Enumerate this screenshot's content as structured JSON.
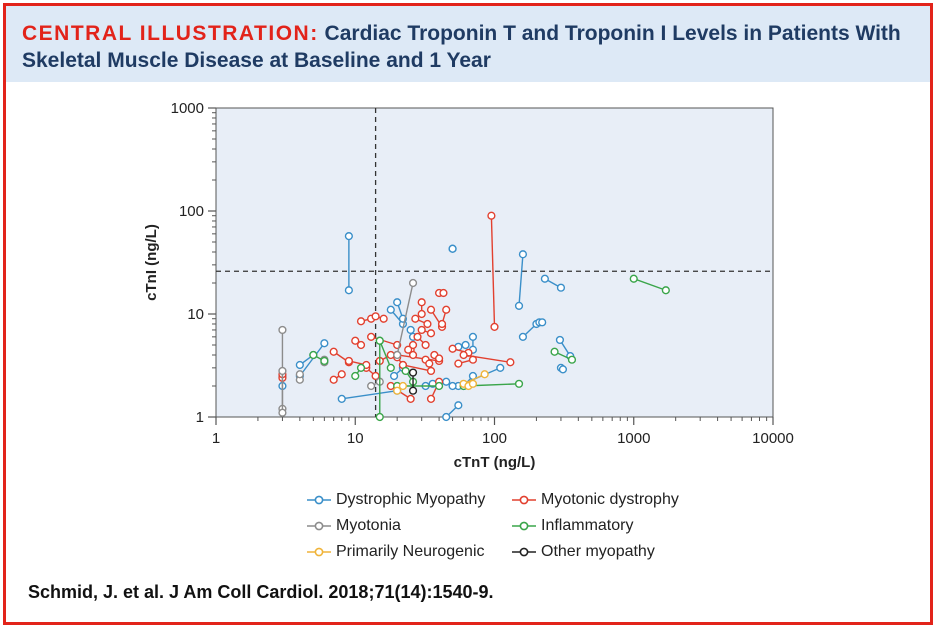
{
  "header": {
    "lead": "CENTRAL ILLUSTRATION:",
    "title": "Cardiac Troponin T and Troponin I Levels in Patients With Skeletal Muscle Disease at Baseline and 1 Year"
  },
  "citation": "Schmid, J. et al. J Am Coll Cardiol. 2018;71(14):1540-9.",
  "colors": {
    "border": "#e2231a",
    "banner_bg": "#dde9f6",
    "plot_bg": "#e8eef7",
    "Dystrophic Myopathy": "#3a8fc9",
    "Myotonic dystrophy": "#e2402f",
    "Myotonia": "#8c8c8c",
    "Inflammatory": "#3aa54a",
    "Primarily Neurogenic": "#f0b43a",
    "Other myopathy": "#222222"
  },
  "chart_data": {
    "type": "scatter",
    "xlabel": "cTnT (ng/L)",
    "ylabel": "cTnI (ng/L)",
    "xscale": "log",
    "yscale": "log",
    "xlim": [
      1,
      10000
    ],
    "ylim": [
      1,
      1000
    ],
    "xticks": [
      "1",
      "10",
      "100",
      "1000",
      "10000"
    ],
    "yticks": [
      "1",
      "10",
      "100",
      "1000"
    ],
    "reference_lines": {
      "x": 14,
      "y": 26
    },
    "legend_position": "bottom",
    "marker": "open circle; baseline and 1-year values joined by a line",
    "series": [
      {
        "name": "Dystrophic Myopathy",
        "pairs": [
          [
            [
              9,
              57
            ],
            [
              9,
              17
            ]
          ],
          [
            [
              50,
              43
            ],
            [
              50,
              43
            ]
          ],
          [
            [
              160,
              38
            ],
            [
              150,
              12
            ]
          ],
          [
            [
              230,
              22
            ],
            [
              300,
              18
            ]
          ],
          [
            [
              160,
              6
            ],
            [
              200,
              8
            ]
          ],
          [
            [
              210,
              8.3
            ],
            [
              220,
              8.3
            ]
          ],
          [
            [
              295,
              5.6
            ],
            [
              350,
              3.9
            ]
          ],
          [
            [
              300,
              3
            ],
            [
              310,
              2.9
            ]
          ],
          [
            [
              45,
              1
            ],
            [
              55,
              1.3
            ]
          ],
          [
            [
              60,
              2
            ],
            [
              70,
              2.5
            ]
          ],
          [
            [
              70,
              4.5
            ],
            [
              70,
              6
            ]
          ],
          [
            [
              110,
              3
            ],
            [
              55,
              2
            ]
          ],
          [
            [
              8,
              1.5
            ],
            [
              20,
              1.8
            ]
          ],
          [
            [
              6,
              5.2
            ],
            [
              4,
              2.5
            ]
          ],
          [
            [
              4,
              3.2
            ],
            [
              5,
              4
            ]
          ],
          [
            [
              3,
              2
            ],
            [
              3,
              2.5
            ]
          ],
          [
            [
              18,
              11
            ],
            [
              22,
              8
            ]
          ],
          [
            [
              20,
              13
            ],
            [
              22,
              9
            ]
          ],
          [
            [
              25,
              7
            ],
            [
              26,
              6
            ]
          ],
          [
            [
              55,
              4.8
            ],
            [
              62,
              5
            ]
          ],
          [
            [
              45,
              2.2
            ],
            [
              50,
              2
            ]
          ],
          [
            [
              19,
              2.5
            ],
            [
              22,
              3
            ]
          ],
          [
            [
              32,
              2
            ],
            [
              36,
              2.1
            ]
          ]
        ]
      },
      {
        "name": "Myotonic dystrophy",
        "pairs": [
          [
            [
              95,
              90
            ],
            [
              100,
              7.5
            ]
          ],
          [
            [
              10,
              5.5
            ],
            [
              11,
              5
            ]
          ],
          [
            [
              11,
              8.5
            ],
            [
              13,
              9
            ]
          ],
          [
            [
              14,
              9.5
            ],
            [
              16,
              9
            ]
          ],
          [
            [
              13,
              6
            ],
            [
              20,
              5
            ]
          ],
          [
            [
              20,
              4
            ],
            [
              40,
              3.5
            ]
          ],
          [
            [
              22,
              3.2
            ],
            [
              35,
              2.8
            ]
          ],
          [
            [
              27,
              9
            ],
            [
              33,
              8
            ]
          ],
          [
            [
              30,
              13
            ],
            [
              30,
              10
            ]
          ],
          [
            [
              35,
              11
            ],
            [
              42,
              7.5
            ]
          ],
          [
            [
              40,
              16
            ],
            [
              43,
              16
            ]
          ],
          [
            [
              45,
              11
            ],
            [
              42,
              8
            ]
          ],
          [
            [
              30,
              7
            ],
            [
              35,
              6.5
            ]
          ],
          [
            [
              28,
              6
            ],
            [
              32,
              5
            ]
          ],
          [
            [
              12,
              3
            ],
            [
              14,
              2.5
            ]
          ],
          [
            [
              15,
              3.5
            ],
            [
              18,
              4
            ]
          ],
          [
            [
              7,
              4.3
            ],
            [
              9,
              3.4
            ]
          ],
          [
            [
              7,
              2.3
            ],
            [
              8,
              2.6
            ]
          ],
          [
            [
              9,
              3.5
            ],
            [
              12,
              3.2
            ]
          ],
          [
            [
              18,
              2
            ],
            [
              25,
              1.5
            ]
          ],
          [
            [
              35,
              1.5
            ],
            [
              40,
              2.2
            ]
          ],
          [
            [
              50,
              4.6
            ],
            [
              65,
              4.2
            ]
          ],
          [
            [
              55,
              3.3
            ],
            [
              70,
              3.6
            ]
          ],
          [
            [
              60,
              4
            ],
            [
              130,
              3.4
            ]
          ],
          [
            [
              25,
              4.5
            ],
            [
              26,
              4
            ]
          ],
          [
            [
              37,
              4
            ],
            [
              40,
              3.7
            ]
          ],
          [
            [
              3,
              2.4
            ],
            [
              3,
              2.6
            ]
          ],
          [
            [
              20,
              3.8
            ],
            [
              22,
              3.2
            ]
          ],
          [
            [
              32,
              3.6
            ],
            [
              34,
              3.3
            ]
          ],
          [
            [
              26,
              5
            ],
            [
              24,
              4.5
            ]
          ]
        ]
      },
      {
        "name": "Myotonia",
        "pairs": [
          [
            [
              3,
              7
            ],
            [
              3,
              1.2
            ]
          ],
          [
            [
              3,
              1.1
            ],
            [
              3,
              2.8
            ]
          ],
          [
            [
              4,
              2.3
            ],
            [
              4,
              2.6
            ]
          ],
          [
            [
              6,
              3.4
            ],
            [
              6,
              3.6
            ]
          ],
          [
            [
              26,
              20
            ],
            [
              20,
              4
            ]
          ],
          [
            [
              13,
              2
            ],
            [
              15,
              2.2
            ]
          ]
        ]
      },
      {
        "name": "Inflammatory",
        "pairs": [
          [
            [
              1000,
              22
            ],
            [
              1700,
              17
            ]
          ],
          [
            [
              270,
              4.3
            ],
            [
              360,
              3.6
            ]
          ],
          [
            [
              15,
              1
            ],
            [
              15,
              5.5
            ]
          ],
          [
            [
              15,
              5.5
            ],
            [
              18,
              3
            ]
          ],
          [
            [
              20,
              2
            ],
            [
              40,
              2
            ]
          ],
          [
            [
              60,
              2
            ],
            [
              150,
              2.1
            ]
          ],
          [
            [
              5,
              4
            ],
            [
              6,
              3.5
            ]
          ],
          [
            [
              11,
              3
            ],
            [
              10,
              2.5
            ]
          ],
          [
            [
              23,
              2.8
            ],
            [
              26,
              2.2
            ]
          ]
        ]
      },
      {
        "name": "Primarily Neurogenic",
        "pairs": [
          [
            [
              60,
              2.1
            ],
            [
              85,
              2.6
            ]
          ],
          [
            [
              65,
              2
            ],
            [
              70,
              2.1
            ]
          ],
          [
            [
              20,
              1.8
            ],
            [
              22,
              2
            ]
          ]
        ]
      },
      {
        "name": "Other myopathy",
        "pairs": [
          [
            [
              26,
              2.7
            ],
            [
              26,
              1.8
            ]
          ]
        ]
      }
    ]
  }
}
